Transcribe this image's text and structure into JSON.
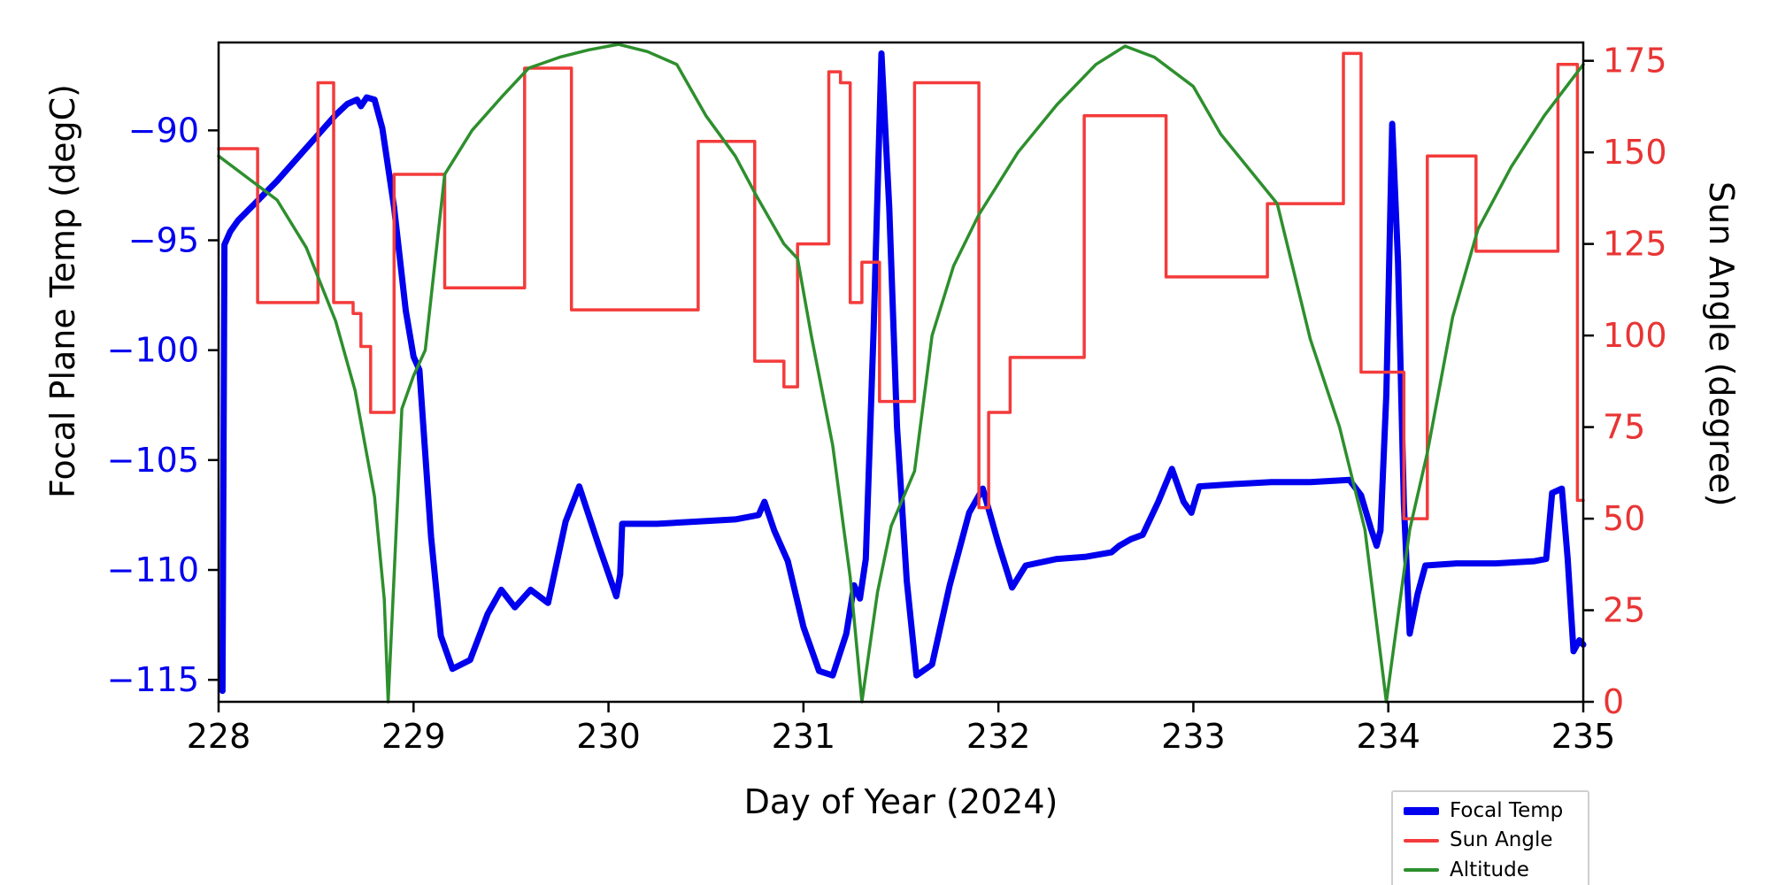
{
  "chart_data": {
    "type": "line",
    "title": "",
    "xlabel": "Day of Year (2024)",
    "ylabel_left": "Focal Plane Temp (degC)",
    "ylabel_right": "Sun Angle (degree)",
    "grid": false,
    "x_range": [
      228,
      235
    ],
    "x_ticks": [
      228,
      229,
      230,
      231,
      232,
      233,
      234,
      235
    ],
    "y_left": {
      "range": [
        -116,
        -86
      ],
      "ticks": [
        -115,
        -110,
        -105,
        -100,
        -95,
        -90
      ],
      "tick_color": "#0000ee"
    },
    "y_right": {
      "range": [
        0,
        180
      ],
      "ticks": [
        0,
        25,
        50,
        75,
        100,
        125,
        150,
        175
      ],
      "tick_color": "#e93434"
    },
    "legend": {
      "position": "below-axes-right",
      "entries": [
        "Focal Temp",
        "Sun Angle",
        "Altitude"
      ]
    },
    "series": [
      {
        "name": "Focal Temp",
        "axis": "left",
        "color": "#0000ee",
        "width": 7,
        "mode": "line",
        "points": [
          [
            228.02,
            -115.5
          ],
          [
            228.03,
            -95.2
          ],
          [
            228.06,
            -94.6
          ],
          [
            228.1,
            -94.1
          ],
          [
            228.2,
            -93.2
          ],
          [
            228.3,
            -92.3
          ],
          [
            228.4,
            -91.3
          ],
          [
            228.5,
            -90.3
          ],
          [
            228.6,
            -89.3
          ],
          [
            228.66,
            -88.8
          ],
          [
            228.71,
            -88.6
          ],
          [
            228.73,
            -88.9
          ],
          [
            228.76,
            -88.5
          ],
          [
            228.8,
            -88.6
          ],
          [
            228.84,
            -89.9
          ],
          [
            228.9,
            -93.5
          ],
          [
            228.96,
            -98.2
          ],
          [
            229.0,
            -100.3
          ],
          [
            229.03,
            -100.9
          ],
          [
            229.09,
            -108.5
          ],
          [
            229.14,
            -113.0
          ],
          [
            229.2,
            -114.5
          ],
          [
            229.29,
            -114.1
          ],
          [
            229.38,
            -112.0
          ],
          [
            229.45,
            -110.9
          ],
          [
            229.52,
            -111.7
          ],
          [
            229.6,
            -110.9
          ],
          [
            229.69,
            -111.5
          ],
          [
            229.78,
            -107.8
          ],
          [
            229.85,
            -106.2
          ],
          [
            229.95,
            -108.9
          ],
          [
            230.04,
            -111.2
          ],
          [
            230.06,
            -110.2
          ],
          [
            230.07,
            -107.9
          ],
          [
            230.25,
            -107.9
          ],
          [
            230.45,
            -107.8
          ],
          [
            230.65,
            -107.7
          ],
          [
            230.77,
            -107.5
          ],
          [
            230.8,
            -106.9
          ],
          [
            230.85,
            -108.2
          ],
          [
            230.92,
            -109.6
          ],
          [
            231.0,
            -112.6
          ],
          [
            231.08,
            -114.6
          ],
          [
            231.15,
            -114.8
          ],
          [
            231.22,
            -112.9
          ],
          [
            231.26,
            -110.7
          ],
          [
            231.29,
            -111.3
          ],
          [
            231.32,
            -109.5
          ],
          [
            231.36,
            -99.0
          ],
          [
            231.4,
            -86.5
          ],
          [
            231.44,
            -93.5
          ],
          [
            231.48,
            -103.5
          ],
          [
            231.53,
            -110.5
          ],
          [
            231.58,
            -114.8
          ],
          [
            231.66,
            -114.3
          ],
          [
            231.75,
            -110.7
          ],
          [
            231.85,
            -107.4
          ],
          [
            231.92,
            -106.3
          ],
          [
            232.0,
            -108.8
          ],
          [
            232.07,
            -110.8
          ],
          [
            232.14,
            -109.8
          ],
          [
            232.3,
            -109.5
          ],
          [
            232.45,
            -109.4
          ],
          [
            232.58,
            -109.2
          ],
          [
            232.62,
            -108.9
          ],
          [
            232.68,
            -108.6
          ],
          [
            232.74,
            -108.4
          ],
          [
            232.82,
            -106.9
          ],
          [
            232.89,
            -105.4
          ],
          [
            232.95,
            -106.9
          ],
          [
            232.99,
            -107.4
          ],
          [
            233.03,
            -106.2
          ],
          [
            233.2,
            -106.1
          ],
          [
            233.4,
            -106.0
          ],
          [
            233.6,
            -106.0
          ],
          [
            233.8,
            -105.9
          ],
          [
            233.86,
            -106.6
          ],
          [
            233.91,
            -108.1
          ],
          [
            233.94,
            -108.9
          ],
          [
            233.96,
            -108.2
          ],
          [
            233.99,
            -102.0
          ],
          [
            234.02,
            -89.7
          ],
          [
            234.05,
            -96.0
          ],
          [
            234.08,
            -107.0
          ],
          [
            234.11,
            -112.9
          ],
          [
            234.15,
            -111.1
          ],
          [
            234.19,
            -109.8
          ],
          [
            234.35,
            -109.7
          ],
          [
            234.55,
            -109.7
          ],
          [
            234.75,
            -109.6
          ],
          [
            234.81,
            -109.5
          ],
          [
            234.84,
            -106.5
          ],
          [
            234.89,
            -106.3
          ],
          [
            234.92,
            -109.5
          ],
          [
            234.95,
            -113.7
          ],
          [
            234.98,
            -113.2
          ],
          [
            235.0,
            -113.4
          ]
        ]
      },
      {
        "name": "Sun Angle",
        "axis": "right",
        "color": "#f43b3b",
        "width": 3.5,
        "mode": "steps",
        "steps": [
          [
            228.0,
            151
          ],
          [
            228.2,
            109
          ],
          [
            228.51,
            169
          ],
          [
            228.59,
            109
          ],
          [
            228.69,
            106
          ],
          [
            228.73,
            97
          ],
          [
            228.78,
            79
          ],
          [
            228.9,
            144
          ],
          [
            229.16,
            113
          ],
          [
            229.57,
            173
          ],
          [
            229.81,
            107
          ],
          [
            230.46,
            153
          ],
          [
            230.75,
            93
          ],
          [
            230.9,
            86
          ],
          [
            230.97,
            125
          ],
          [
            231.13,
            172
          ],
          [
            231.19,
            169
          ],
          [
            231.24,
            109
          ],
          [
            231.3,
            120
          ],
          [
            231.39,
            82
          ],
          [
            231.57,
            169
          ],
          [
            231.9,
            53
          ],
          [
            231.95,
            79
          ],
          [
            232.06,
            94
          ],
          [
            232.44,
            160
          ],
          [
            232.86,
            116
          ],
          [
            233.38,
            136
          ],
          [
            233.77,
            177
          ],
          [
            233.86,
            90
          ],
          [
            234.08,
            50
          ],
          [
            234.2,
            149
          ],
          [
            234.45,
            123
          ],
          [
            234.87,
            174
          ],
          [
            234.97,
            55
          ]
        ],
        "x_end": 235.0
      },
      {
        "name": "Altitude",
        "axis": "right",
        "color": "#2d8f2d",
        "width": 3.5,
        "mode": "line",
        "points": [
          [
            228.0,
            149
          ],
          [
            228.15,
            143
          ],
          [
            228.3,
            137
          ],
          [
            228.45,
            124
          ],
          [
            228.6,
            104
          ],
          [
            228.7,
            85
          ],
          [
            228.8,
            56
          ],
          [
            228.85,
            28
          ],
          [
            228.87,
            0
          ],
          [
            228.94,
            80
          ],
          [
            229.0,
            89
          ],
          [
            229.06,
            96
          ],
          [
            229.16,
            144
          ],
          [
            229.3,
            156
          ],
          [
            229.45,
            165
          ],
          [
            229.59,
            173
          ],
          [
            229.75,
            176
          ],
          [
            229.9,
            178
          ],
          [
            230.05,
            179.5
          ],
          [
            230.2,
            177.5
          ],
          [
            230.35,
            174
          ],
          [
            230.5,
            160
          ],
          [
            230.65,
            149
          ],
          [
            230.76,
            138
          ],
          [
            230.9,
            125
          ],
          [
            230.97,
            121
          ],
          [
            231.04,
            100
          ],
          [
            231.15,
            70
          ],
          [
            231.24,
            34
          ],
          [
            231.3,
            0
          ],
          [
            231.38,
            30
          ],
          [
            231.45,
            48
          ],
          [
            231.57,
            63
          ],
          [
            231.66,
            100
          ],
          [
            231.77,
            119
          ],
          [
            231.9,
            133
          ],
          [
            232.1,
            150
          ],
          [
            232.3,
            163
          ],
          [
            232.5,
            174
          ],
          [
            232.65,
            179
          ],
          [
            232.8,
            176
          ],
          [
            233.0,
            168
          ],
          [
            233.14,
            155
          ],
          [
            233.43,
            136
          ],
          [
            233.6,
            99
          ],
          [
            233.75,
            75
          ],
          [
            233.88,
            47
          ],
          [
            233.99,
            0
          ],
          [
            234.11,
            47
          ],
          [
            234.2,
            68
          ],
          [
            234.33,
            105
          ],
          [
            234.46,
            129
          ],
          [
            234.63,
            146
          ],
          [
            234.8,
            160
          ],
          [
            235.0,
            174
          ]
        ]
      }
    ]
  }
}
